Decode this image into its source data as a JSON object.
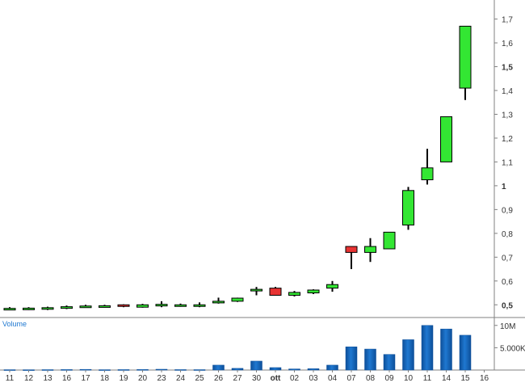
{
  "colors": {
    "up": "#33e633",
    "down": "#e83333",
    "wick": "#000000",
    "volume": "#1f78d1",
    "volume_dark": "#0d4f99",
    "axis": "#808080",
    "grid": "#d9d9d9",
    "volume_label": "#1f78d1"
  },
  "chart_data": [
    {
      "type": "candlestick",
      "title": "",
      "xlabel": "",
      "ylabel": "",
      "grid": false,
      "y_axis_side": "right",
      "ylim": [
        0.45,
        1.78
      ],
      "yticks": [
        {
          "value": 0.5,
          "label": "0,5",
          "bold": true
        },
        {
          "value": 0.6,
          "label": "0,6"
        },
        {
          "value": 0.7,
          "label": "0,7"
        },
        {
          "value": 0.8,
          "label": "0,8"
        },
        {
          "value": 0.9,
          "label": "0,9"
        },
        {
          "value": 1.0,
          "label": "1",
          "bold": true
        },
        {
          "value": 1.1,
          "label": "1,1"
        },
        {
          "value": 1.2,
          "label": "1,2"
        },
        {
          "value": 1.3,
          "label": "1,3"
        },
        {
          "value": 1.4,
          "label": "1,4"
        },
        {
          "value": 1.5,
          "label": "1,5",
          "bold": true
        },
        {
          "value": 1.6,
          "label": "1,6"
        },
        {
          "value": 1.7,
          "label": "1,7"
        }
      ],
      "categories": [
        "11",
        "12",
        "13",
        "16",
        "17",
        "18",
        "19",
        "20",
        "23",
        "24",
        "25",
        "26",
        "27",
        "30",
        "ott",
        "02",
        "03",
        "04",
        "07",
        "08",
        "09",
        "10",
        "11",
        "14",
        "15",
        "16"
      ],
      "bold_categories": [
        "ott"
      ],
      "candles": [
        {
          "open": 0.485,
          "high": 0.49,
          "low": 0.481,
          "close": 0.485
        },
        {
          "open": 0.482,
          "high": 0.49,
          "low": 0.478,
          "close": 0.486
        },
        {
          "open": 0.483,
          "high": 0.492,
          "low": 0.478,
          "close": 0.488
        },
        {
          "open": 0.49,
          "high": 0.497,
          "low": 0.482,
          "close": 0.492
        },
        {
          "open": 0.495,
          "high": 0.5,
          "low": 0.49,
          "close": 0.495
        },
        {
          "open": 0.496,
          "high": 0.5,
          "low": 0.492,
          "close": 0.496
        },
        {
          "open": 0.5,
          "high": 0.502,
          "low": 0.49,
          "close": 0.495
        },
        {
          "open": 0.49,
          "high": 0.504,
          "low": 0.488,
          "close": 0.5
        },
        {
          "open": 0.5,
          "high": 0.515,
          "low": 0.49,
          "close": 0.502
        },
        {
          "open": 0.498,
          "high": 0.505,
          "low": 0.492,
          "close": 0.5
        },
        {
          "open": 0.495,
          "high": 0.51,
          "low": 0.49,
          "close": 0.5
        },
        {
          "open": 0.508,
          "high": 0.53,
          "low": 0.505,
          "close": 0.515
        },
        {
          "open": 0.515,
          "high": 0.53,
          "low": 0.512,
          "close": 0.528
        },
        {
          "open": 0.56,
          "high": 0.575,
          "low": 0.54,
          "close": 0.565
        },
        {
          "open": 0.57,
          "high": 0.575,
          "low": 0.54,
          "close": 0.54
        },
        {
          "open": 0.54,
          "high": 0.558,
          "low": 0.535,
          "close": 0.552
        },
        {
          "open": 0.55,
          "high": 0.565,
          "low": 0.545,
          "close": 0.562
        },
        {
          "open": 0.57,
          "high": 0.6,
          "low": 0.555,
          "close": 0.585
        },
        {
          "open": 0.745,
          "high": 0.745,
          "low": 0.65,
          "close": 0.72
        },
        {
          "open": 0.72,
          "high": 0.78,
          "low": 0.68,
          "close": 0.745
        },
        {
          "open": 0.735,
          "high": 0.805,
          "low": 0.735,
          "close": 0.805
        },
        {
          "open": 0.835,
          "high": 0.995,
          "low": 0.815,
          "close": 0.98
        },
        {
          "open": 1.025,
          "high": 1.155,
          "low": 1.005,
          "close": 1.075
        },
        {
          "open": 1.1,
          "high": 1.29,
          "low": 1.1,
          "close": 1.29
        },
        {
          "open": 1.41,
          "high": 1.67,
          "low": 1.36,
          "close": 1.67
        },
        null
      ]
    },
    {
      "type": "bar",
      "title": "Volume",
      "ylim": [
        0,
        10500
      ],
      "y_unit": "K",
      "yticks": [
        {
          "value": 5000,
          "label": "5.000K"
        },
        {
          "value": 10000,
          "label": "10M"
        }
      ],
      "categories": [
        "11",
        "12",
        "13",
        "16",
        "17",
        "18",
        "19",
        "20",
        "23",
        "24",
        "25",
        "26",
        "27",
        "30",
        "ott",
        "02",
        "03",
        "04",
        "07",
        "08",
        "09",
        "10",
        "11",
        "14",
        "15",
        "16"
      ],
      "values": [
        80,
        70,
        90,
        110,
        150,
        80,
        100,
        120,
        180,
        100,
        90,
        1100,
        380,
        2000,
        550,
        250,
        300,
        1100,
        5200,
        4700,
        3500,
        6800,
        10000,
        9200,
        7800,
        0
      ]
    }
  ]
}
